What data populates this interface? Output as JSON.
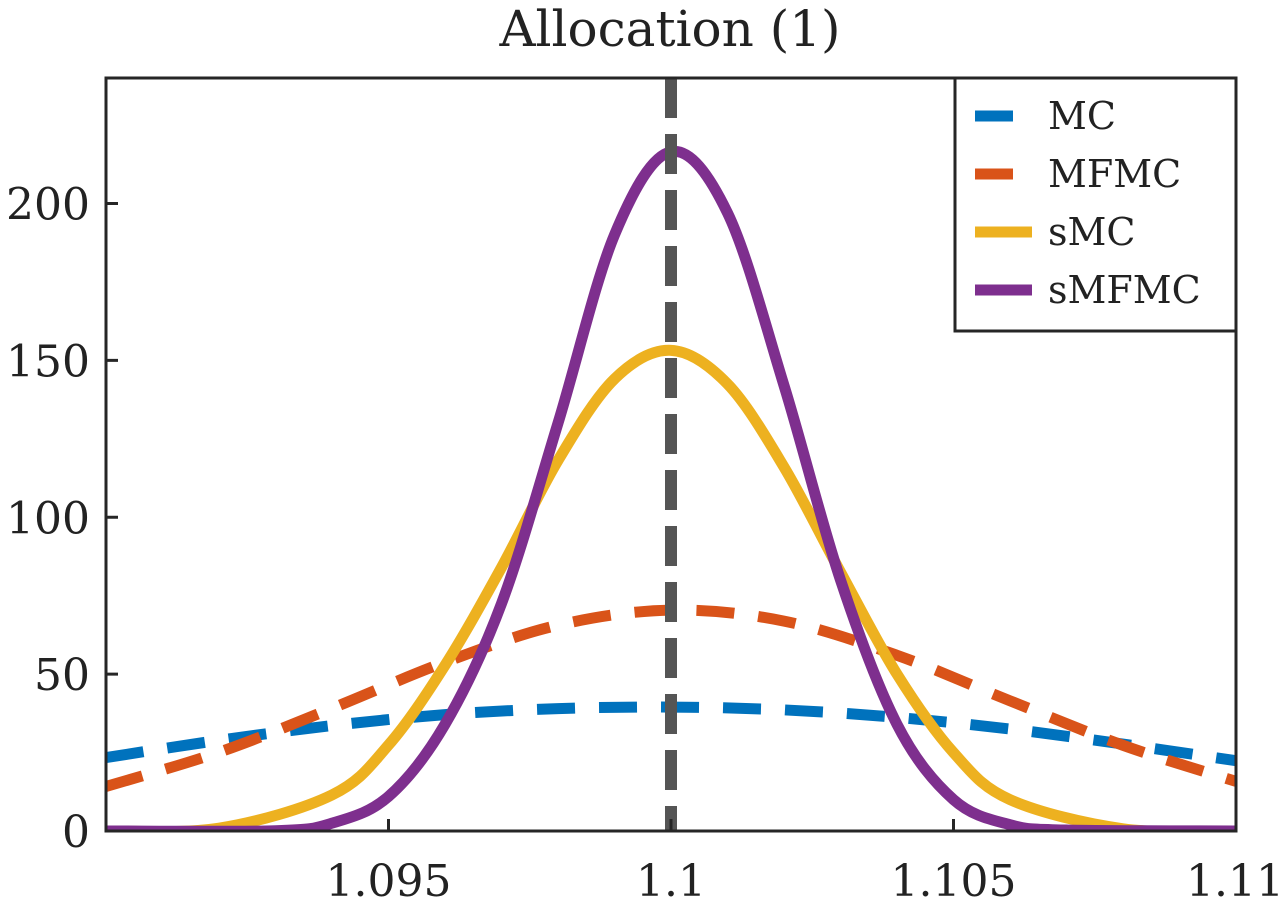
{
  "chart_data": {
    "type": "line",
    "title": "Allocation (1)",
    "xlabel": "",
    "ylabel": "",
    "xlim": [
      1.09,
      1.11
    ],
    "ylim": [
      0,
      240
    ],
    "x_ticks": [
      1.095,
      1.1,
      1.105,
      1.11
    ],
    "x_tick_labels": [
      "1.095",
      "1.1",
      "1.105",
      "1.11"
    ],
    "y_ticks": [
      0,
      50,
      100,
      150,
      200
    ],
    "y_tick_labels": [
      "0",
      "50",
      "100",
      "150",
      "200"
    ],
    "grid": false,
    "legend_position": "top-right",
    "reference_line": {
      "x": 1.1,
      "style": "dashed",
      "color": "#555555"
    },
    "series": [
      {
        "name": "MC",
        "style": "dashed",
        "color": "#0072BD",
        "x": [
          1.09,
          1.092,
          1.094,
          1.096,
          1.098,
          1.1,
          1.102,
          1.104,
          1.106,
          1.108,
          1.11
        ],
        "values": [
          23.4,
          28.9,
          33.6,
          37.1,
          39.0,
          39.5,
          38.6,
          36.2,
          32.5,
          27.7,
          22.4
        ]
      },
      {
        "name": "MFMC",
        "style": "dashed",
        "color": "#D95319",
        "x": [
          1.09,
          1.092,
          1.094,
          1.096,
          1.098,
          1.1,
          1.102,
          1.104,
          1.106,
          1.108,
          1.11
        ],
        "values": [
          14.2,
          25.1,
          39.1,
          53.8,
          65.6,
          70.4,
          66.9,
          56.0,
          41.5,
          27.3,
          15.8
        ]
      },
      {
        "name": "sMC",
        "style": "solid",
        "color": "#EDB120",
        "x": [
          1.09,
          1.092,
          1.094,
          1.095,
          1.096,
          1.097,
          1.098,
          1.099,
          1.1,
          1.101,
          1.102,
          1.103,
          1.104,
          1.105,
          1.106,
          1.108,
          1.11
        ],
        "values": [
          0.0,
          0.9,
          11.5,
          27.4,
          52.8,
          84.0,
          118.1,
          144.1,
          153.2,
          142.5,
          116.0,
          82.5,
          50.0,
          25.0,
          10.0,
          0.7,
          0.0
        ],
        "peak": 153
      },
      {
        "name": "sMFMC",
        "style": "solid",
        "color": "#7E2F8E",
        "x": [
          1.09,
          1.093,
          1.094,
          1.095,
          1.096,
          1.097,
          1.098,
          1.099,
          1.1,
          1.101,
          1.102,
          1.103,
          1.104,
          1.105,
          1.106,
          1.107,
          1.11
        ],
        "values": [
          0.0,
          0.1,
          2.5,
          11.0,
          34.0,
          72.5,
          130.0,
          190.0,
          216.5,
          197.0,
          142.0,
          80.0,
          34.0,
          10.0,
          2.0,
          0.3,
          0.0
        ],
        "peak": 217
      }
    ]
  }
}
